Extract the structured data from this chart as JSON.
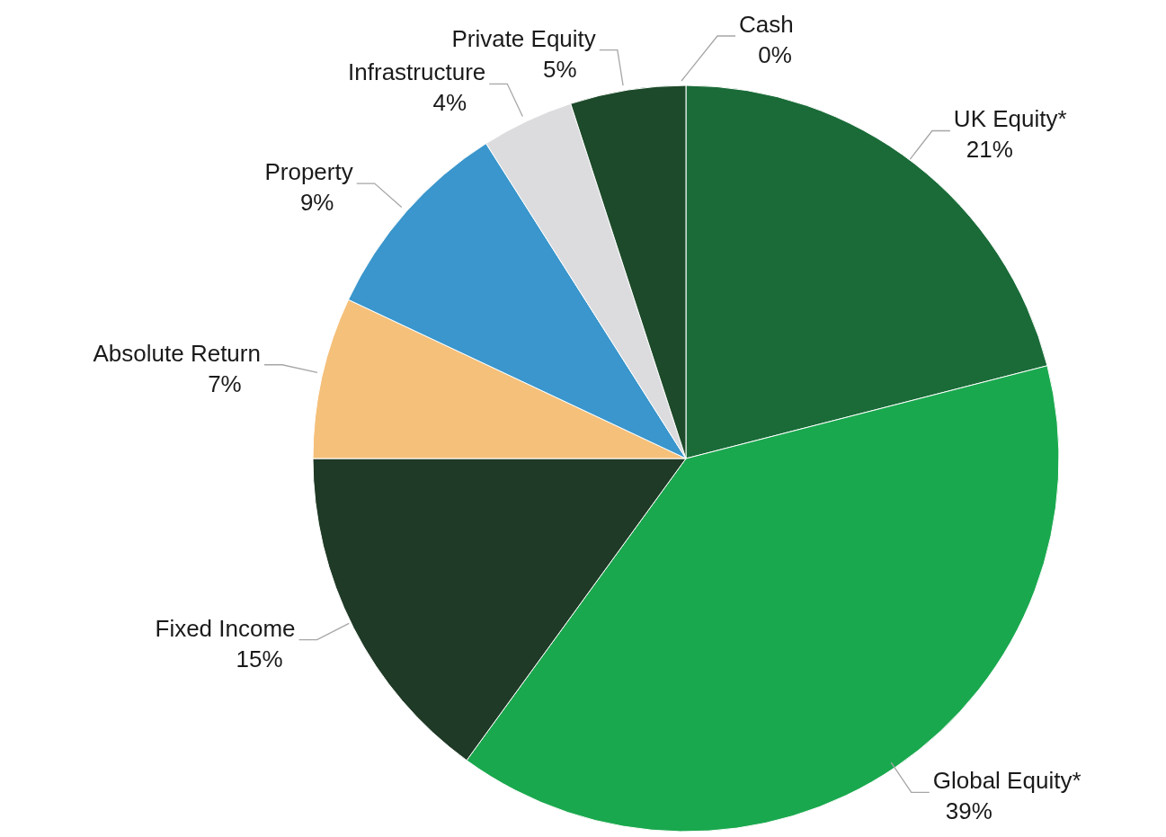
{
  "chart_data": {
    "type": "pie",
    "categories": [
      "Cash",
      "UK Equity*",
      "Global Equity*",
      "Fixed Income",
      "Absolute Return",
      "Property",
      "Infrastructure",
      "Private Equity"
    ],
    "values": [
      0,
      21,
      39,
      15,
      7,
      9,
      4,
      5
    ],
    "value_labels": [
      "0%",
      "21%",
      "39%",
      "15%",
      "7%",
      "9%",
      "4%",
      "5%"
    ],
    "colors": [
      "#3a7d52",
      "#1a6b38",
      "#1aa84e",
      "#1f3a26",
      "#f5c07a",
      "#3a96cc",
      "#dcdcdf",
      "#1d4a2a"
    ]
  }
}
